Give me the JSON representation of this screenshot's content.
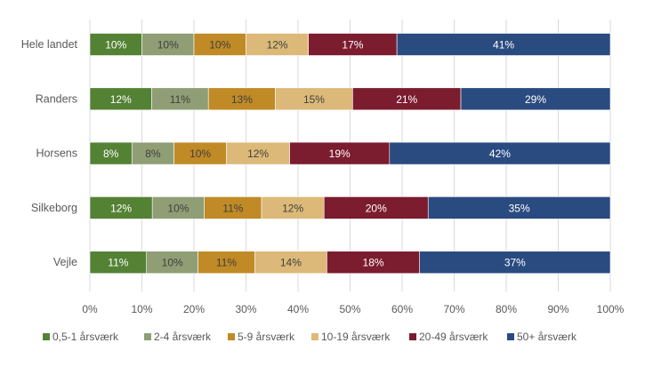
{
  "chart_data": {
    "type": "bar",
    "orientation": "horizontal",
    "stacked": "percent",
    "title": "",
    "xlabel": "",
    "ylabel": "",
    "xlim": [
      0,
      100
    ],
    "x_ticks": [
      "0%",
      "10%",
      "20%",
      "30%",
      "40%",
      "50%",
      "60%",
      "70%",
      "80%",
      "90%",
      "100%"
    ],
    "grid": "vertical",
    "legend_position": "bottom",
    "categories": [
      "Hele landet",
      "Randers",
      "Horsens",
      "Silkeborg",
      "Vejle"
    ],
    "series": [
      {
        "name": "0,5-1 årsværk",
        "color": "#548235",
        "label_color": "#ffffff",
        "values": [
          10,
          12,
          8,
          12,
          11
        ]
      },
      {
        "name": "2-4 årsværk",
        "color": "#8f9e74",
        "label_color": "#404040",
        "values": [
          10,
          11,
          8,
          10,
          10
        ]
      },
      {
        "name": "5-9 årsværk",
        "color": "#c08a26",
        "label_color": "#404040",
        "values": [
          10,
          13,
          10,
          11,
          11
        ]
      },
      {
        "name": "10-19 årsværk",
        "color": "#dcb978",
        "label_color": "#404040",
        "values": [
          12,
          15,
          12,
          12,
          14
        ]
      },
      {
        "name": "20-49 årsværk",
        "color": "#7b1c2f",
        "label_color": "#ffffff",
        "values": [
          17,
          21,
          19,
          20,
          18
        ]
      },
      {
        "name": "50+ årsværk",
        "color": "#2a4b80",
        "label_color": "#ffffff",
        "values": [
          41,
          29,
          42,
          35,
          37
        ]
      }
    ]
  }
}
